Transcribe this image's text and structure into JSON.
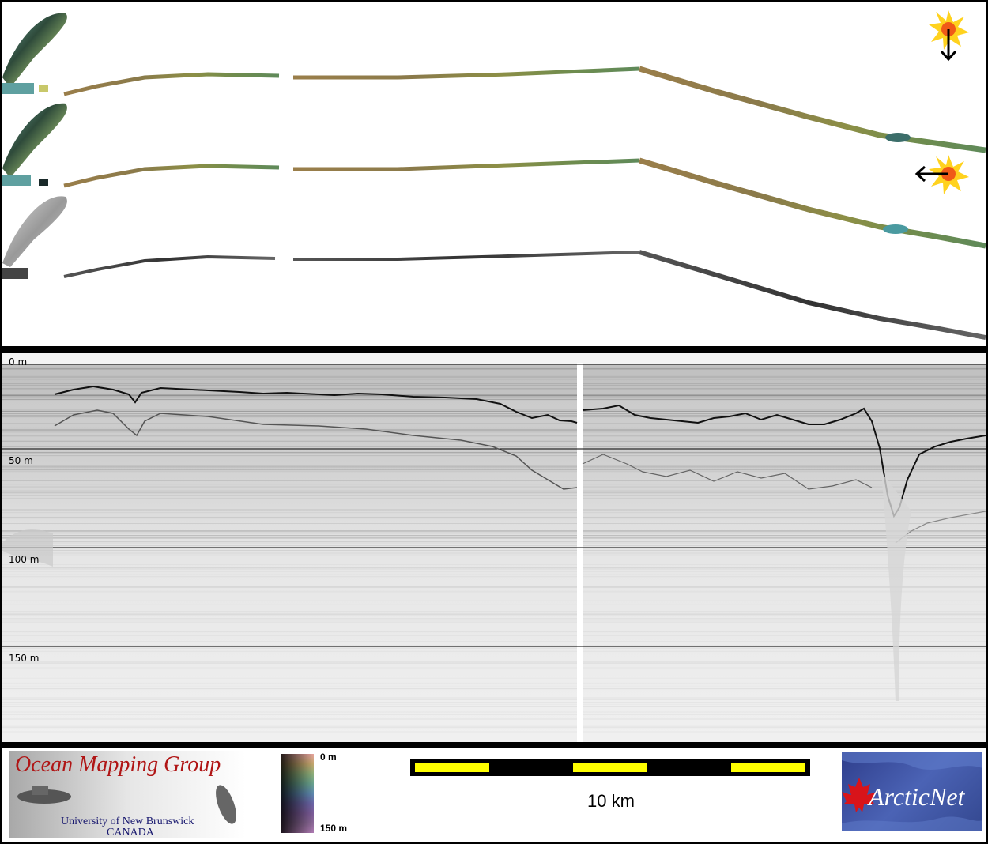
{
  "profile": {
    "depth_labels": [
      "0 m",
      "50 m",
      "100 m",
      "150 m"
    ]
  },
  "legend": {
    "colorbar_top": "0 m",
    "colorbar_bottom": "150 m",
    "scale_label": "10 km"
  },
  "logos": {
    "omg_title": "Ocean Mapping Group",
    "omg_sub1": "University of New Brunswick",
    "omg_sub2": "CANADA",
    "arcticnet": "ArcticNet"
  },
  "colors": {
    "scalebar_fill": "#ffff00",
    "scalebar_frame": "#000000",
    "omg_title": "#b01515",
    "sun": "#ffd21e"
  },
  "icons": [
    "sun-illumination-icon",
    "arrow-down-icon",
    "arrow-left-icon",
    "maple-leaf-icon"
  ]
}
